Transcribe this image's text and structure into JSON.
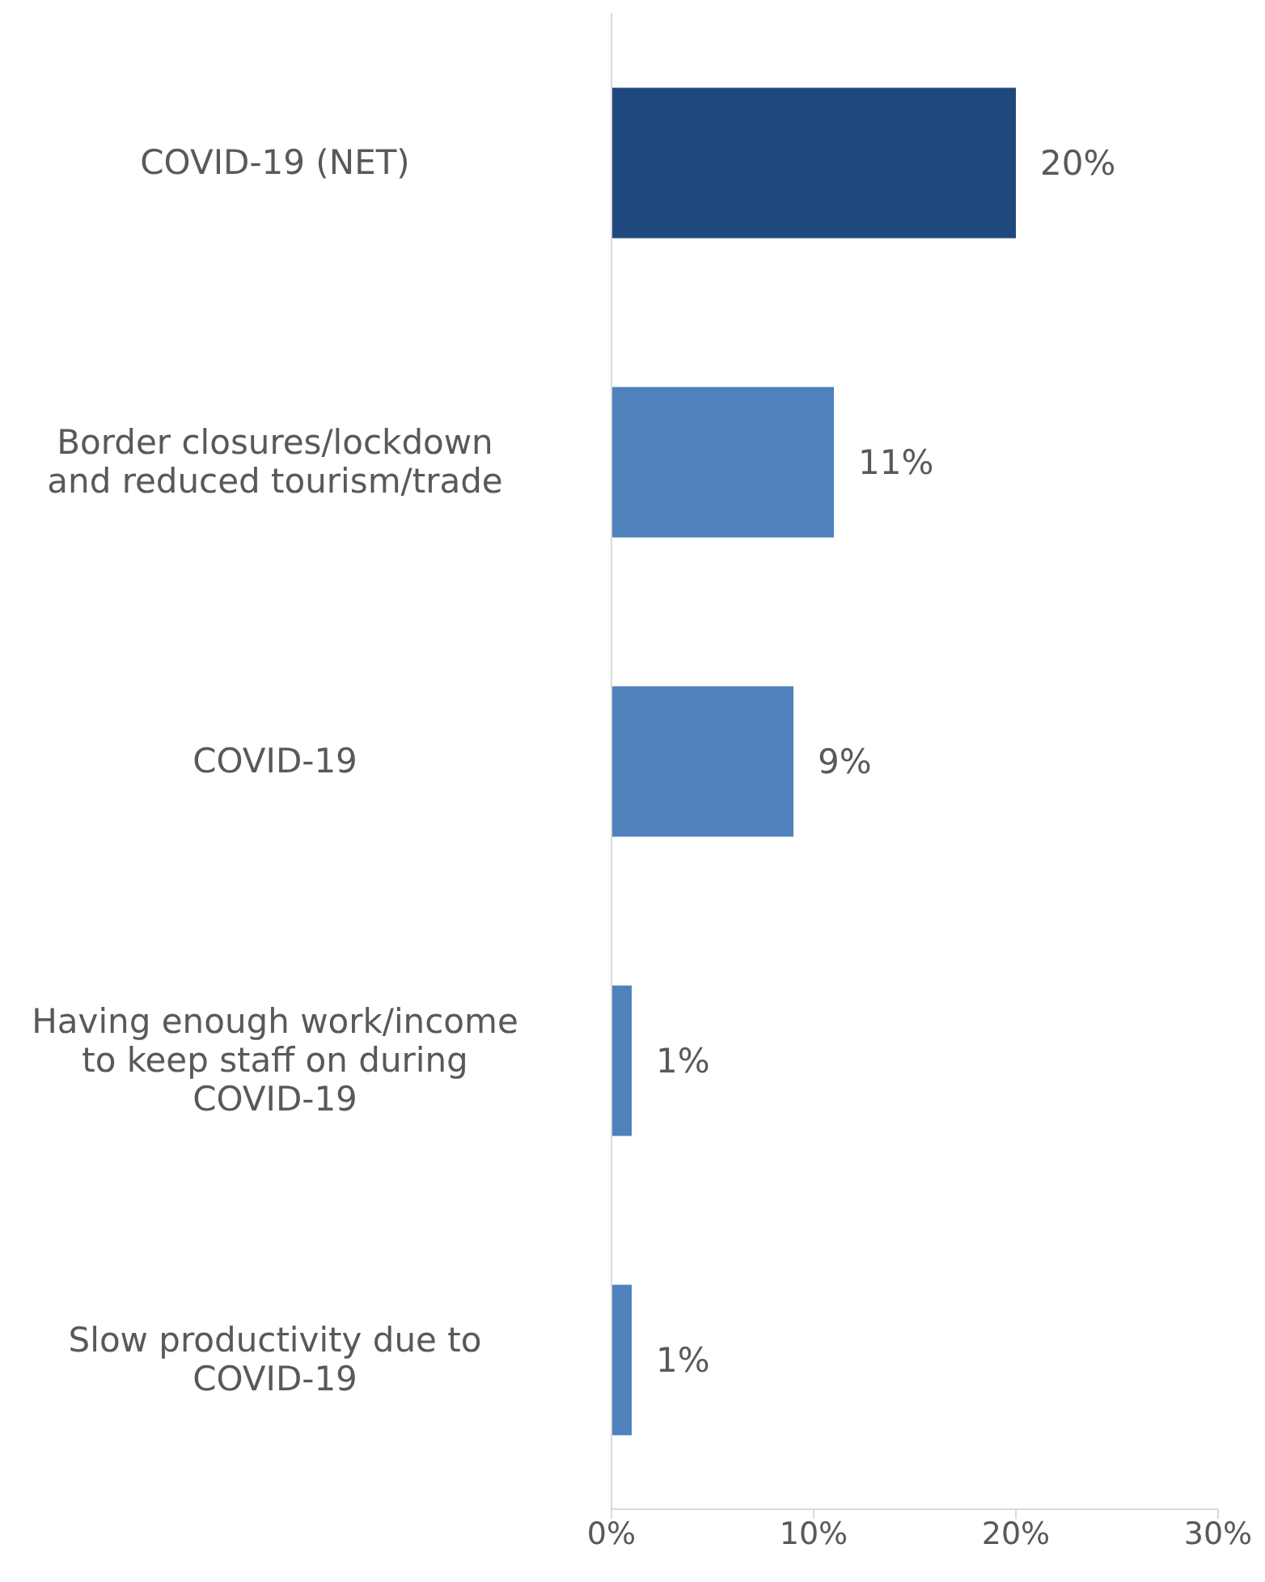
{
  "chart_data": {
    "type": "bar",
    "orientation": "horizontal",
    "categories": [
      "COVID-19 (NET)",
      "Border closures/lockdown and reduced tourism/trade",
      "COVID-19",
      "Having enough work/income to keep staff on during COVID-19",
      "Slow productivity due to COVID-19"
    ],
    "values": [
      20,
      11,
      9,
      1,
      1
    ],
    "colors": [
      "#1f497d",
      "#4f81bd",
      "#4f81bd",
      "#4f81bd",
      "#4f81bd"
    ],
    "value_labels": [
      "20%",
      "11%",
      "9%",
      "1%",
      "1%"
    ],
    "xlim": [
      0,
      30
    ],
    "xticks": [
      {
        "value": 0,
        "label": "0%"
      },
      {
        "value": 10,
        "label": "10%"
      },
      {
        "value": 20,
        "label": "20%"
      },
      {
        "value": 30,
        "label": "30%"
      }
    ]
  }
}
